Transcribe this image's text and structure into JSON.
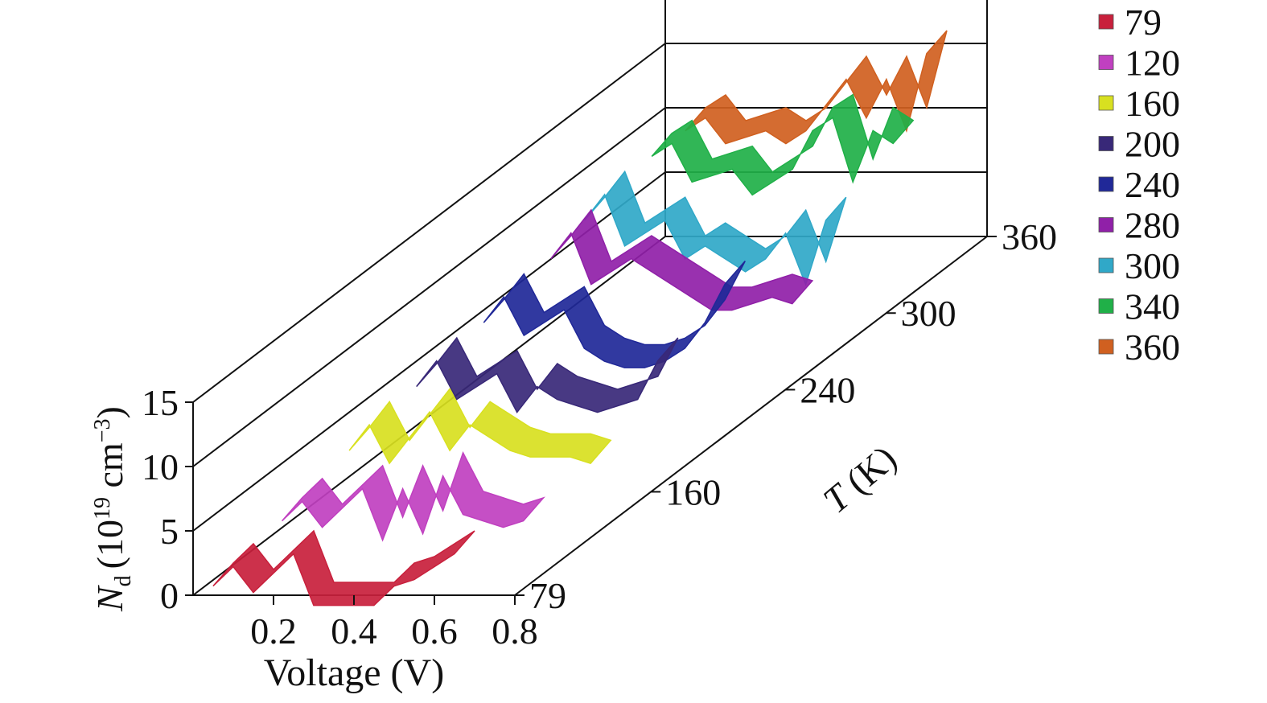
{
  "chart_data": {
    "type": "3d-ribbon",
    "xlabel": "Voltage (V)",
    "ylabel_main": "N",
    "ylabel_sub": "d",
    "ylabel_unit_a": "(10",
    "ylabel_unit_b": "19",
    "ylabel_unit_c": " cm",
    "ylabel_unit_d": "−3",
    "ylabel_unit_e": ")",
    "zlabel_var": "T",
    "zlabel_unit": " (K)",
    "x_ticks": [
      "0.2",
      "0.4",
      "0.6",
      "0.8"
    ],
    "y_ticks": [
      "0",
      "5",
      "10",
      "15"
    ],
    "z_ticks": [
      "79",
      "160",
      "240",
      "300",
      "360"
    ],
    "xlim": [
      0,
      0.8
    ],
    "ylim": [
      0,
      15
    ],
    "zlim": [
      79,
      360
    ],
    "legend_position": "top-right",
    "series": [
      {
        "name": "79",
        "color": "#c8203c",
        "T": 79,
        "x": [
          0.1,
          0.15,
          0.2,
          0.3,
          0.35,
          0.4,
          0.45,
          0.5,
          0.55,
          0.6,
          0.65,
          0.7
        ],
        "y": [
          2.5,
          4.0,
          2.0,
          5.0,
          1.0,
          1.0,
          1.0,
          1.0,
          2.5,
          3.0,
          4.0,
          5.0
        ]
      },
      {
        "name": "120",
        "color": "#c040c0",
        "T": 120,
        "x": [
          0.1,
          0.15,
          0.2,
          0.3,
          0.35,
          0.4,
          0.45,
          0.5,
          0.55,
          0.6,
          0.65,
          0.7
        ],
        "y": [
          3.5,
          5.0,
          3.0,
          6.0,
          2.0,
          6.0,
          2.5,
          7.0,
          4.0,
          3.5,
          3.0,
          3.5
        ]
      },
      {
        "name": "160",
        "color": "#d8e020",
        "T": 160,
        "x": [
          0.1,
          0.15,
          0.2,
          0.3,
          0.35,
          0.4,
          0.45,
          0.5,
          0.55,
          0.6,
          0.65,
          0.7
        ],
        "y": [
          5.0,
          7.0,
          4.0,
          8.0,
          5.0,
          7.0,
          6.0,
          5.0,
          4.5,
          4.5,
          4.5,
          4.0
        ]
      },
      {
        "name": "200",
        "color": "#382878",
        "T": 200,
        "x": [
          0.1,
          0.15,
          0.2,
          0.3,
          0.35,
          0.4,
          0.45,
          0.5,
          0.55,
          0.6,
          0.65,
          0.7
        ],
        "y": [
          6.0,
          8.0,
          5.0,
          7.0,
          4.0,
          6.0,
          5.0,
          4.5,
          4.0,
          4.5,
          5.0,
          8.0
        ]
      },
      {
        "name": "240",
        "color": "#202898",
        "T": 240,
        "x": [
          0.1,
          0.15,
          0.2,
          0.3,
          0.35,
          0.4,
          0.45,
          0.5,
          0.55,
          0.6,
          0.65,
          0.7
        ],
        "y": [
          7.0,
          9.0,
          6.0,
          8.0,
          5.0,
          4.0,
          3.5,
          3.5,
          4.0,
          5.0,
          7.0,
          10.0
        ]
      },
      {
        "name": "280",
        "color": "#9020a8",
        "T": 280,
        "x": [
          0.1,
          0.15,
          0.2,
          0.3,
          0.35,
          0.4,
          0.45,
          0.5,
          0.55,
          0.6,
          0.65,
          0.7
        ],
        "y": [
          8.0,
          10.0,
          6.0,
          8.0,
          7.0,
          6.0,
          5.0,
          4.0,
          4.0,
          4.5,
          5.0,
          4.5
        ]
      },
      {
        "name": "300",
        "color": "#30a8c8",
        "T": 300,
        "x": [
          0.1,
          0.15,
          0.2,
          0.3,
          0.35,
          0.4,
          0.45,
          0.5,
          0.55,
          0.6,
          0.65,
          0.7
        ],
        "y": [
          9.0,
          11.0,
          7.0,
          9.0,
          6.0,
          7.0,
          6.0,
          5.0,
          6.0,
          8.0,
          4.0,
          9.0
        ]
      },
      {
        "name": "340",
        "color": "#20b048",
        "T": 340,
        "x": [
          0.1,
          0.15,
          0.2,
          0.3,
          0.35,
          0.4,
          0.45,
          0.5,
          0.55,
          0.6,
          0.65,
          0.7
        ],
        "y": [
          10.0,
          11.0,
          8.0,
          9.0,
          7.0,
          8.0,
          9.0,
          12.0,
          13.0,
          8.0,
          12.0,
          11.0
        ]
      },
      {
        "name": "360",
        "color": "#d06020",
        "T": 360,
        "x": [
          0.1,
          0.15,
          0.2,
          0.3,
          0.35,
          0.4,
          0.45,
          0.5,
          0.55,
          0.6,
          0.65,
          0.7
        ],
        "y": [
          10.0,
          11.0,
          9.0,
          10.0,
          9.0,
          10.0,
          12.0,
          14.0,
          11.0,
          14.0,
          10.0,
          16.0
        ]
      }
    ]
  }
}
